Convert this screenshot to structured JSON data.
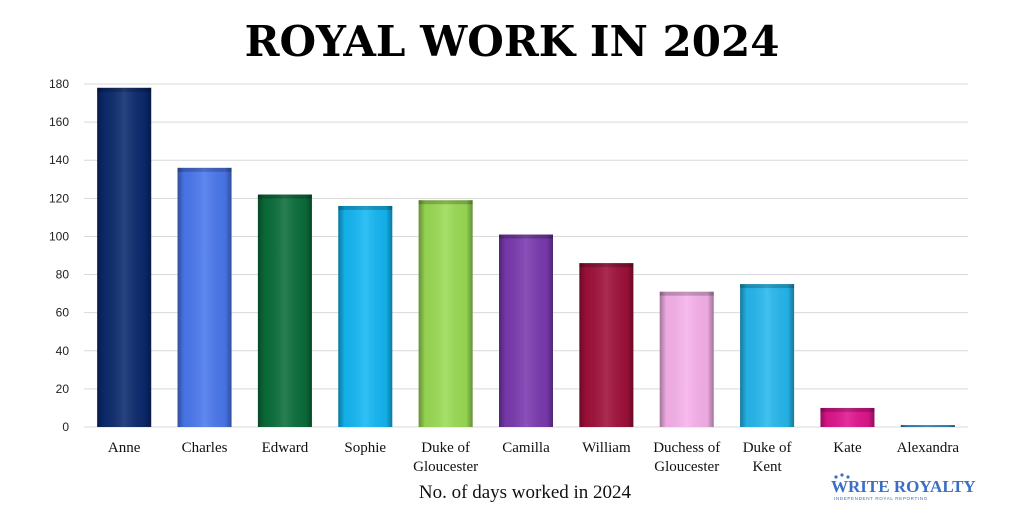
{
  "chart_data": {
    "type": "bar",
    "title": "ROYAL WORK IN 2024",
    "xlabel": "No. of days worked in 2024",
    "ylabel": "",
    "ylim": [
      0,
      180
    ],
    "yticks": [
      0,
      20,
      40,
      60,
      80,
      100,
      120,
      140,
      160,
      180
    ],
    "grid": true,
    "categories": [
      [
        "Anne"
      ],
      [
        "Charles"
      ],
      [
        "Edward"
      ],
      [
        "Sophie"
      ],
      [
        "Duke of",
        "Gloucester"
      ],
      [
        "Camilla"
      ],
      [
        "William"
      ],
      [
        "Duchess of",
        "Gloucester"
      ],
      [
        "Duke of",
        "Kent"
      ],
      [
        "Kate"
      ],
      [
        "Alexandra"
      ]
    ],
    "values": [
      178,
      136,
      122,
      116,
      119,
      101,
      86,
      71,
      75,
      10,
      1
    ],
    "colors": [
      "#0b2a6e",
      "#4a78ee",
      "#0a6e3a",
      "#14b8f4",
      "#9bdc55",
      "#7b3ab0",
      "#a0103a",
      "#f8b2ec",
      "#26b8ee",
      "#e0158d",
      "#3b9cd8"
    ]
  },
  "logo": {
    "main": "WRITE ROYALTY",
    "tagline": "INDEPENDENT ROYAL REPORTING"
  }
}
